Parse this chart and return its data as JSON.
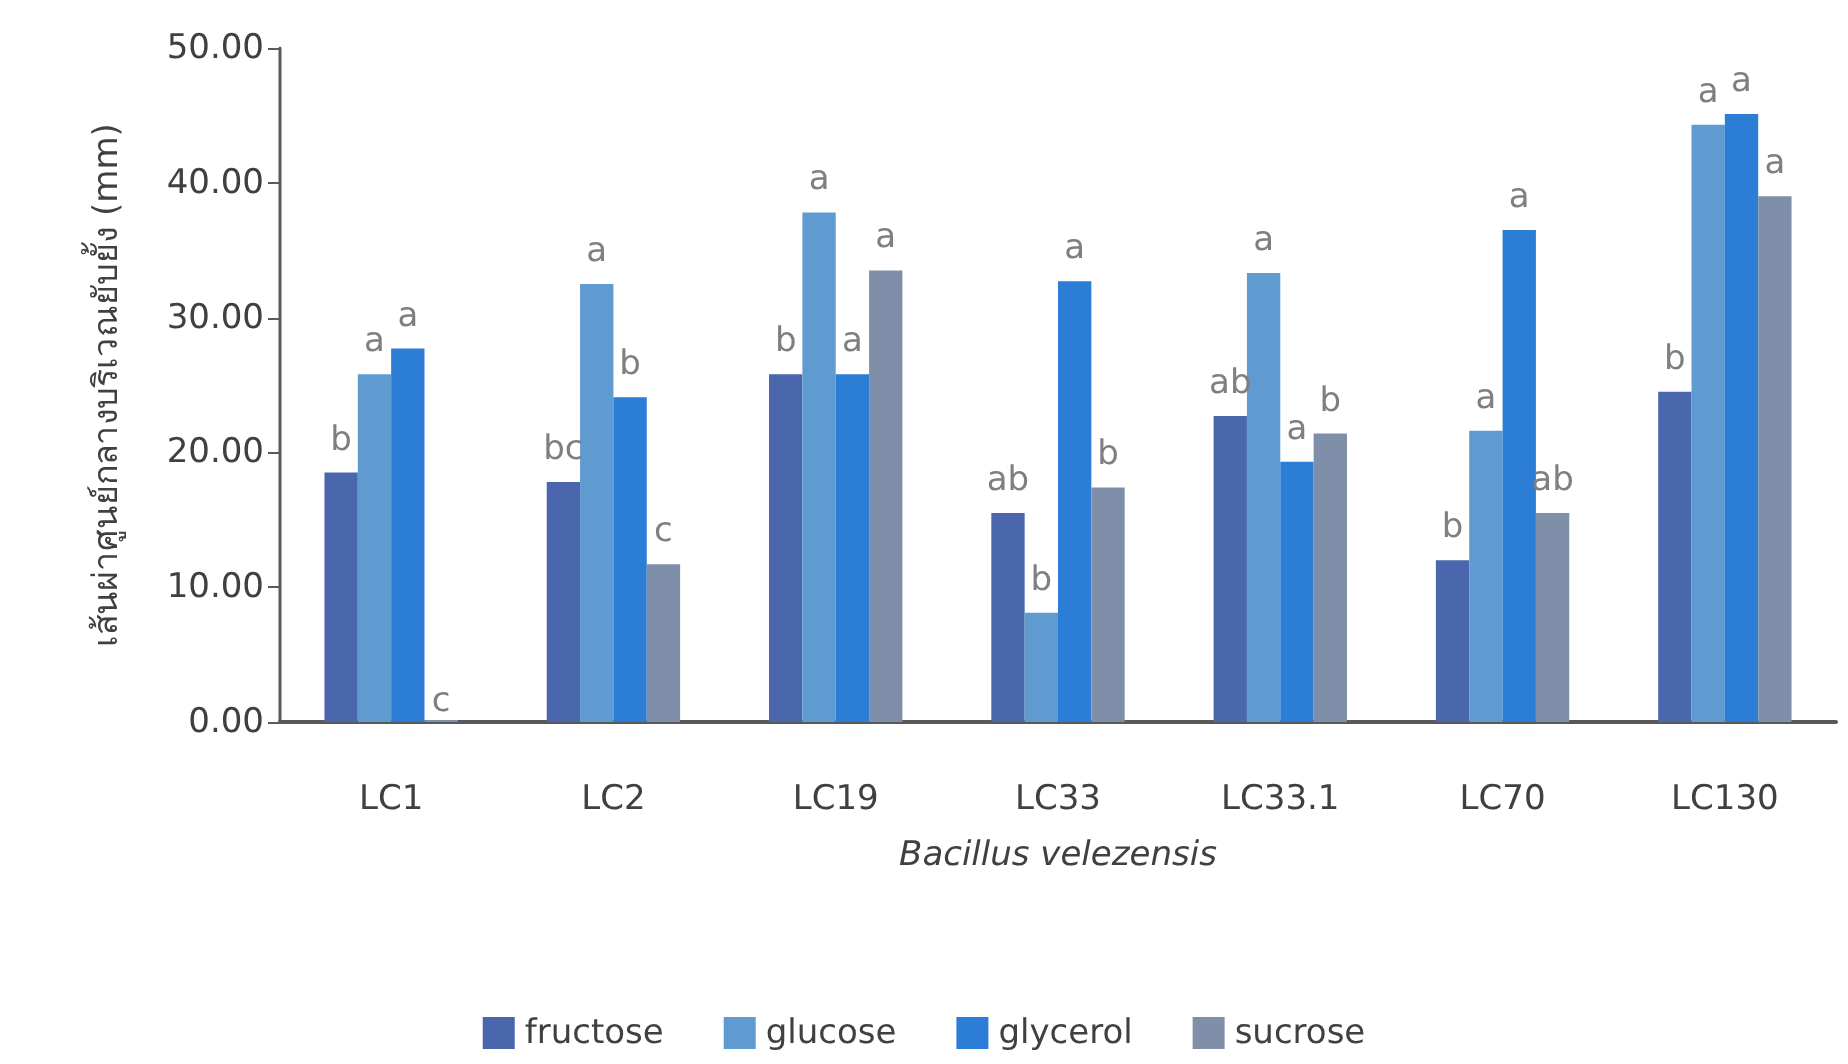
{
  "chart_data": {
    "type": "bar",
    "xlabel": "Bacillus velezensis",
    "ylabel": "เส้นผ่าศูนย์กลางบริเวณยับยั้ง (mm)",
    "categories": [
      "LC1",
      "LC2",
      "LC19",
      "LC33",
      "LC33.1",
      "LC70",
      "LC130"
    ],
    "series": [
      {
        "name": "fructose",
        "color": "#4a67ad",
        "values": [
          18.5,
          17.8,
          25.8,
          15.5,
          22.7,
          12.0,
          24.5
        ],
        "value_labels": [
          "b",
          "bc",
          "b",
          "ab",
          "ab",
          "b",
          "b"
        ]
      },
      {
        "name": "glucose",
        "color": "#5f9bd1",
        "values": [
          25.8,
          32.5,
          37.8,
          8.1,
          33.3,
          21.6,
          44.3
        ],
        "value_labels": [
          "a",
          "a",
          "a",
          "b",
          "a",
          "a",
          "a"
        ]
      },
      {
        "name": "glycerol",
        "color": "#2b7dd6",
        "values": [
          27.7,
          24.1,
          25.8,
          32.7,
          19.3,
          36.5,
          45.1
        ],
        "value_labels": [
          "a",
          "b",
          "a",
          "a",
          "a",
          "a",
          "a"
        ]
      },
      {
        "name": "sucrose",
        "color": "#7f8fa9",
        "values": [
          0,
          11.7,
          33.5,
          17.4,
          21.4,
          15.5,
          39.0
        ],
        "value_labels": [
          "c",
          "c",
          "a",
          "b",
          "b",
          "ab",
          "a"
        ]
      }
    ],
    "ylim": [
      0,
      50
    ],
    "yticks": [
      {
        "value": 0,
        "label": "0.00"
      },
      {
        "value": 10,
        "label": "10.00"
      },
      {
        "value": 20,
        "label": "20.00"
      },
      {
        "value": 30,
        "label": "30.00"
      },
      {
        "value": 40,
        "label": "40.00"
      },
      {
        "value": 50,
        "label": "50.00"
      }
    ],
    "grid": false,
    "legend": "bottom"
  }
}
